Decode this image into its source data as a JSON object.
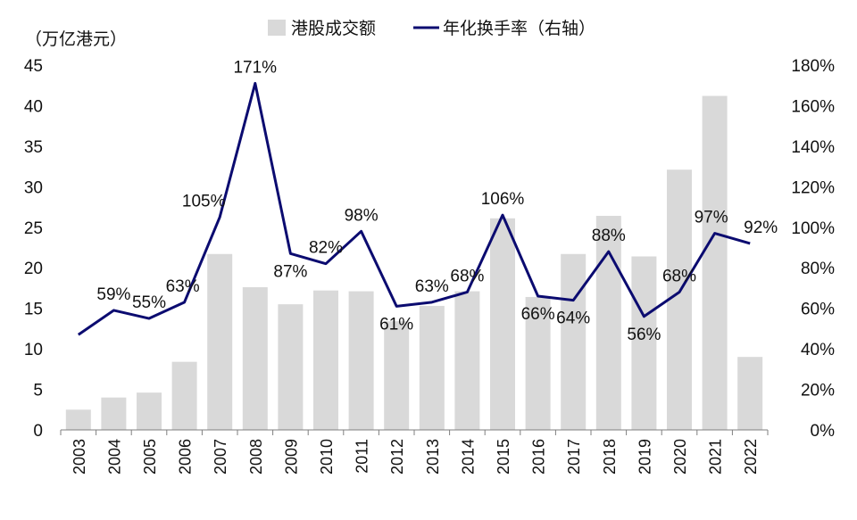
{
  "colors": {
    "bar": "#d9d9d9",
    "line": "#0b0b70",
    "axis": "#7f7f7f",
    "text": "#111111"
  },
  "chart_data": {
    "type": "bar",
    "title": "",
    "unit_label": "（万亿港元）",
    "categories": [
      "2003",
      "2004",
      "2005",
      "2006",
      "2007",
      "2008",
      "2009",
      "2010",
      "2011",
      "2012",
      "2013",
      "2014",
      "2015",
      "2016",
      "2017",
      "2018",
      "2019",
      "2020",
      "2021",
      "2022"
    ],
    "series": [
      {
        "name": "港股成交额",
        "type": "bar",
        "axis": "left",
        "values": [
          2.5,
          4.0,
          4.6,
          8.4,
          21.7,
          17.6,
          15.5,
          17.2,
          17.1,
          13.4,
          15.3,
          17.1,
          26.1,
          16.4,
          21.7,
          26.4,
          21.4,
          32.1,
          41.2,
          9.0
        ]
      },
      {
        "name": "年化换手率（右轴）",
        "type": "line",
        "axis": "right",
        "values": [
          47,
          59,
          55,
          63,
          105,
          171,
          87,
          82,
          98,
          61,
          63,
          68,
          106,
          66,
          64,
          88,
          56,
          68,
          97,
          92
        ],
        "labels": [
          null,
          "59%",
          "55%",
          "63%",
          "105%",
          "171%",
          "87%",
          "82%",
          "98%",
          "61%",
          "63%",
          "68%",
          "106%",
          "66%",
          "64%",
          "88%",
          "56%",
          "68%",
          "97%",
          "92%"
        ]
      }
    ],
    "y_left": {
      "min": 0,
      "max": 45,
      "ticks": [
        "0",
        "5",
        "10",
        "15",
        "20",
        "25",
        "30",
        "35",
        "40",
        "45"
      ]
    },
    "y_right": {
      "min": 0,
      "max": 180,
      "ticks": [
        "0%",
        "20%",
        "40%",
        "60%",
        "80%",
        "100%",
        "120%",
        "140%",
        "160%",
        "180%"
      ]
    },
    "legend_position": "top-center",
    "grid": false
  }
}
